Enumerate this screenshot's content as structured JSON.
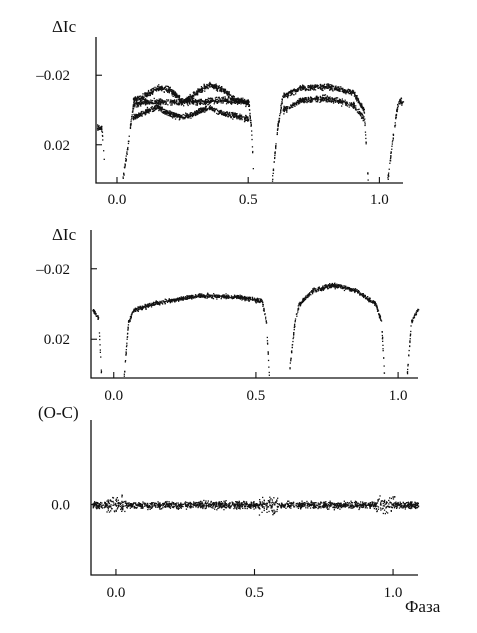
{
  "x_axis_title": "Фаза",
  "chart_data": [
    {
      "type": "scatter",
      "ylabel": "ΔIc",
      "xlim": [
        -0.08,
        1.09
      ],
      "ylim": [
        0.042,
        -0.042
      ],
      "xticks": [
        0.0,
        0.5,
        1.0
      ],
      "xtick_labels": [
        "0.0",
        "0.5",
        "1.0"
      ],
      "yticks": [
        -0.02,
        0.02
      ],
      "ytick_labels": [
        "–0.02",
        "0.02"
      ],
      "segments": [
        {
          "x": [
            -0.085,
            -0.075,
            -0.06,
            -0.05
          ],
          "y": [
            0.005,
            0.01,
            0.01,
            0.03
          ]
        },
        {
          "x": [
            0.02,
            0.04,
            0.06,
            0.1,
            0.2,
            0.3,
            0.4,
            0.5,
            0.51,
            0.52
          ],
          "y": [
            0.04,
            0.02,
            -0.003,
            -0.005,
            -0.005,
            -0.005,
            -0.006,
            -0.005,
            0.01,
            0.04
          ]
        },
        {
          "x": [
            0.59,
            0.61,
            0.63,
            0.7,
            0.8,
            0.9,
            0.94,
            0.955
          ],
          "y": [
            0.04,
            0.01,
            -0.008,
            -0.013,
            -0.014,
            -0.01,
            0.0,
            0.04
          ]
        },
        {
          "x": [
            1.03,
            1.05,
            1.07,
            1.09
          ],
          "y": [
            0.04,
            0.015,
            -0.005,
            -0.005
          ]
        }
      ],
      "upper_band": {
        "x": [
          0.06,
          0.1,
          0.15,
          0.2,
          0.25,
          0.3,
          0.35,
          0.4,
          0.45,
          0.5
        ],
        "y": [
          -0.006,
          -0.008,
          -0.013,
          -0.012,
          -0.005,
          -0.01,
          -0.015,
          -0.012,
          -0.006,
          -0.004
        ]
      },
      "lower_band": {
        "x": [
          0.06,
          0.1,
          0.15,
          0.2,
          0.25,
          0.3,
          0.35,
          0.4,
          0.45,
          0.5
        ],
        "y": [
          0.004,
          0.001,
          -0.002,
          0.002,
          0.004,
          0.001,
          -0.002,
          0.002,
          0.003,
          0.005
        ]
      },
      "spread": 0.0025
    },
    {
      "type": "scatter",
      "ylabel": "ΔIc",
      "xlim": [
        -0.08,
        1.07
      ],
      "ylim": [
        0.042,
        -0.042
      ],
      "xticks": [
        0.0,
        0.5,
        1.0
      ],
      "xtick_labels": [
        "0.0",
        "0.5",
        "1.0"
      ],
      "yticks": [
        -0.02,
        0.02
      ],
      "ytick_labels": [
        "–0.02",
        "0.02"
      ],
      "segments": [
        {
          "x": [
            -0.085,
            -0.07,
            -0.055,
            -0.045
          ],
          "y": [
            0.002,
            0.004,
            0.008,
            0.04
          ]
        },
        {
          "x": [
            0.035,
            0.05,
            0.07,
            0.15,
            0.3,
            0.45,
            0.52,
            0.535,
            0.545
          ],
          "y": [
            0.04,
            0.01,
            0.003,
            -0.001,
            -0.005,
            -0.004,
            -0.002,
            0.01,
            0.04
          ]
        },
        {
          "x": [
            0.615,
            0.635,
            0.65,
            0.7,
            0.77,
            0.85,
            0.92,
            0.94,
            0.95
          ],
          "y": [
            0.04,
            0.01,
            0.0,
            -0.008,
            -0.011,
            -0.008,
            0.0,
            0.01,
            0.04
          ]
        },
        {
          "x": [
            1.03,
            1.045,
            1.06,
            1.07
          ],
          "y": [
            0.04,
            0.01,
            0.005,
            0.003
          ]
        }
      ],
      "spread": 0.0018
    },
    {
      "type": "scatter",
      "ylabel": "(O-C)",
      "xlim": [
        -0.09,
        1.09
      ],
      "ylim": [
        0.025,
        -0.03
      ],
      "xticks": [
        0.0,
        0.5,
        1.0
      ],
      "xtick_labels": [
        "0.0",
        "0.5",
        "1.0"
      ],
      "yticks": [
        0.0
      ],
      "ytick_labels": [
        "0.0"
      ],
      "segments": [
        {
          "x": [
            -0.09,
            0.0,
            0.5,
            0.95,
            1.09
          ],
          "y": [
            0.0,
            0.0,
            0.0,
            0.0,
            0.0
          ]
        }
      ],
      "spread": 0.0018,
      "bumps": [
        0.0,
        0.55,
        0.97
      ]
    }
  ]
}
